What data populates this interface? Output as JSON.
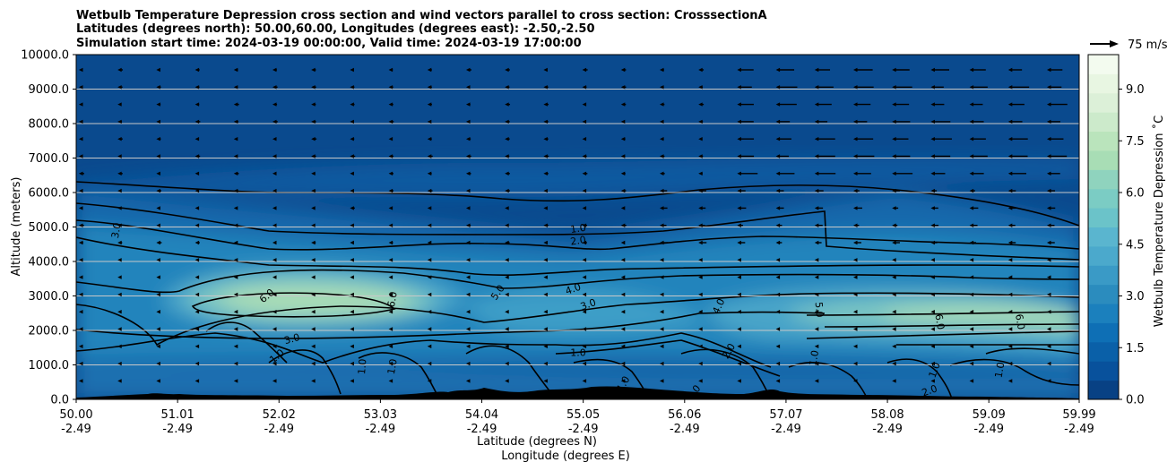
{
  "chart_data": {
    "type": "contour",
    "title_lines": [
      "Wetbulb Temperature Depression cross section and wind vectors parallel to cross section: CrosssectionA",
      "Latitudes (degrees north): 50.00,60.00, Longitudes (degrees east): -2.50,-2.50",
      "Simulation start time: 2024-03-19 00:00:00, Valid time: 2024-03-19 17:00:00"
    ],
    "ylabel": "Altitude (meters)",
    "xlabel_lat": "Latitude (degrees N)",
    "xlabel_lon": "Longitude (degrees E)",
    "ylim": [
      0,
      10000
    ],
    "xlim": [
      50.0,
      59.99
    ],
    "yticks": [
      "0.0",
      "1000.0",
      "2000.0",
      "3000.0",
      "4000.0",
      "5000.0",
      "6000.0",
      "7000.0",
      "8000.0",
      "9000.0",
      "10000.0"
    ],
    "ytick_values": [
      0,
      1000,
      2000,
      3000,
      4000,
      5000,
      6000,
      7000,
      8000,
      9000,
      10000
    ],
    "xticks_lat": [
      "50.00",
      "51.01",
      "52.02",
      "53.03",
      "54.04",
      "55.05",
      "56.06",
      "57.07",
      "58.08",
      "59.09",
      "59.99"
    ],
    "xtick_values": [
      50.0,
      51.01,
      52.02,
      53.03,
      54.04,
      55.05,
      56.06,
      57.07,
      58.08,
      59.09,
      59.99
    ],
    "xticks_lon": [
      "-2.49",
      "-2.49",
      "-2.49",
      "-2.49",
      "-2.49",
      "-2.49",
      "-2.49",
      "-2.49",
      "-2.49",
      "-2.49",
      "-2.49"
    ],
    "grid": "horizontal",
    "colorbar": {
      "label": "Wetbulb Temperature Depression ˚C",
      "ticks": [
        "0.0",
        "1.5",
        "3.0",
        "4.5",
        "6.0",
        "7.5",
        "9.0"
      ],
      "tick_values": [
        0,
        1.5,
        3.0,
        4.5,
        6.0,
        7.5,
        9.0
      ],
      "range": [
        0,
        10
      ],
      "colors": [
        "#084184",
        "#08519c",
        "#0a60a8",
        "#0e6fb5",
        "#1b80bd",
        "#2b8cbe",
        "#3a9ac6",
        "#4ba9cc",
        "#5ab5cf",
        "#6bc3c9",
        "#7bccc4",
        "#8fd3be",
        "#a8ddb5",
        "#bae4bc",
        "#cceacb",
        "#dcf0d8",
        "#e8f6e2",
        "#f3fbef"
      ]
    },
    "quiver_key": {
      "label": "75 m/s",
      "speed": 75
    },
    "contour_labels": [
      {
        "text": "1.0",
        "lat": 55.0,
        "alt": 4950,
        "rot": -8
      },
      {
        "text": "2.0",
        "lat": 55.0,
        "alt": 4600,
        "rot": -8
      },
      {
        "text": "3.0",
        "lat": 50.4,
        "alt": 4900,
        "rot": -80
      },
      {
        "text": "6.0",
        "lat": 51.9,
        "alt": 3000,
        "rot": -40
      },
      {
        "text": "6.0",
        "lat": 53.15,
        "alt": 2900,
        "rot": -80
      },
      {
        "text": "5.0",
        "lat": 54.2,
        "alt": 3100,
        "rot": -55
      },
      {
        "text": "4.0",
        "lat": 54.95,
        "alt": 3200,
        "rot": -20
      },
      {
        "text": "3.0",
        "lat": 55.1,
        "alt": 2750,
        "rot": -20
      },
      {
        "text": "4.0",
        "lat": 56.4,
        "alt": 2700,
        "rot": -65
      },
      {
        "text": "5.0",
        "lat": 57.4,
        "alt": 2600,
        "rot": 85
      },
      {
        "text": "6.0",
        "lat": 58.6,
        "alt": 2250,
        "rot": 80
      },
      {
        "text": "6.0",
        "lat": 59.4,
        "alt": 2250,
        "rot": 80
      },
      {
        "text": "3.0",
        "lat": 52.15,
        "alt": 1750,
        "rot": -15
      },
      {
        "text": "1.0",
        "lat": 52.0,
        "alt": 1250,
        "rot": -40
      },
      {
        "text": "1.0",
        "lat": 52.85,
        "alt": 950,
        "rot": -85
      },
      {
        "text": "1.0",
        "lat": 53.15,
        "alt": 950,
        "rot": -80
      },
      {
        "text": "1.0",
        "lat": 55.0,
        "alt": 1350,
        "rot": 0
      },
      {
        "text": "1.0",
        "lat": 55.45,
        "alt": 450,
        "rot": -60
      },
      {
        "text": "2.0",
        "lat": 56.5,
        "alt": 1400,
        "rot": -60
      },
      {
        "text": "1.0",
        "lat": 57.35,
        "alt": 1200,
        "rot": -80
      },
      {
        "text": "2.0",
        "lat": 58.5,
        "alt": 250,
        "rot": -20
      },
      {
        "text": "1.0",
        "lat": 59.2,
        "alt": 850,
        "rot": -80
      },
      {
        "text": "3.0",
        "lat": 56.15,
        "alt": 200,
        "rot": -50
      },
      {
        "text": "1.0",
        "lat": 58.55,
        "alt": 850,
        "rot": -70
      }
    ]
  }
}
